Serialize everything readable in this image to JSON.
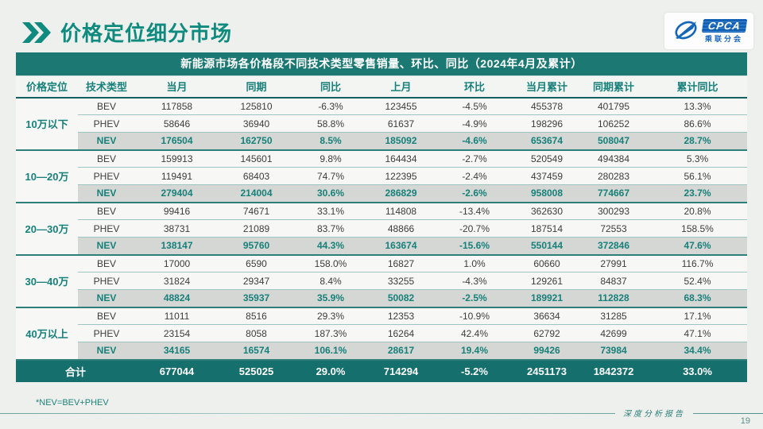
{
  "page": {
    "title": "价格定位细分市场",
    "footnote": "*NEV=BEV+PHEV",
    "footer_label": "深度分析报告",
    "page_number": "19"
  },
  "logo": {
    "name": "CPCA",
    "subtitle": "乘联分会"
  },
  "colors": {
    "accent_teal": "#17807a",
    "title_bar_bg": "#1b7873",
    "total_row_bg": "#156f6c",
    "nev_row_bg": "#d5d7d4",
    "logo_blue": "#1160b4"
  },
  "table": {
    "title": "新能源市场各价格段不同技术类型零售销量、环比、同比（2024年4月及累计）",
    "columns": [
      "价格定位",
      "技术类型",
      "当月",
      "同期",
      "同比",
      "上月",
      "环比",
      "当月累计",
      "同期累计",
      "累计同比"
    ],
    "groups": [
      {
        "label": "10万以下",
        "rows": [
          {
            "type": "BEV",
            "cells": [
              "117858",
              "125810",
              "-6.3%",
              "123455",
              "-4.5%",
              "455378",
              "401795",
              "13.3%"
            ]
          },
          {
            "type": "PHEV",
            "cells": [
              "58646",
              "36940",
              "58.8%",
              "61637",
              "-4.9%",
              "198296",
              "106252",
              "86.6%"
            ]
          },
          {
            "type": "NEV",
            "cells": [
              "176504",
              "162750",
              "8.5%",
              "185092",
              "-4.6%",
              "653674",
              "508047",
              "28.7%"
            ]
          }
        ]
      },
      {
        "label": "10—20万",
        "rows": [
          {
            "type": "BEV",
            "cells": [
              "159913",
              "145601",
              "9.8%",
              "164434",
              "-2.7%",
              "520549",
              "494384",
              "5.3%"
            ]
          },
          {
            "type": "PHEV",
            "cells": [
              "119491",
              "68403",
              "74.7%",
              "122395",
              "-2.4%",
              "437459",
              "280283",
              "56.1%"
            ]
          },
          {
            "type": "NEV",
            "cells": [
              "279404",
              "214004",
              "30.6%",
              "286829",
              "-2.6%",
              "958008",
              "774667",
              "23.7%"
            ]
          }
        ]
      },
      {
        "label": "20—30万",
        "rows": [
          {
            "type": "BEV",
            "cells": [
              "99416",
              "74671",
              "33.1%",
              "114808",
              "-13.4%",
              "362630",
              "300293",
              "20.8%"
            ]
          },
          {
            "type": "PHEV",
            "cells": [
              "38731",
              "21089",
              "83.7%",
              "48866",
              "-20.7%",
              "187514",
              "72553",
              "158.5%"
            ]
          },
          {
            "type": "NEV",
            "cells": [
              "138147",
              "95760",
              "44.3%",
              "163674",
              "-15.6%",
              "550144",
              "372846",
              "47.6%"
            ]
          }
        ]
      },
      {
        "label": "30—40万",
        "rows": [
          {
            "type": "BEV",
            "cells": [
              "17000",
              "6590",
              "158.0%",
              "16827",
              "1.0%",
              "60660",
              "27991",
              "116.7%"
            ]
          },
          {
            "type": "PHEV",
            "cells": [
              "31824",
              "29347",
              "8.4%",
              "33255",
              "-4.3%",
              "129261",
              "84837",
              "52.4%"
            ]
          },
          {
            "type": "NEV",
            "cells": [
              "48824",
              "35937",
              "35.9%",
              "50082",
              "-2.5%",
              "189921",
              "112828",
              "68.3%"
            ]
          }
        ]
      },
      {
        "label": "40万以上",
        "rows": [
          {
            "type": "BEV",
            "cells": [
              "11011",
              "8516",
              "29.3%",
              "12353",
              "-10.9%",
              "36634",
              "31285",
              "17.1%"
            ]
          },
          {
            "type": "PHEV",
            "cells": [
              "23154",
              "8058",
              "187.3%",
              "16264",
              "42.4%",
              "62792",
              "42699",
              "47.1%"
            ]
          },
          {
            "type": "NEV",
            "cells": [
              "34165",
              "16574",
              "106.1%",
              "28617",
              "19.4%",
              "99426",
              "73984",
              "34.4%"
            ]
          }
        ]
      }
    ],
    "total": {
      "label": "合计",
      "cells": [
        "677044",
        "525025",
        "29.0%",
        "714294",
        "-5.2%",
        "2451173",
        "1842372",
        "33.0%"
      ]
    }
  }
}
